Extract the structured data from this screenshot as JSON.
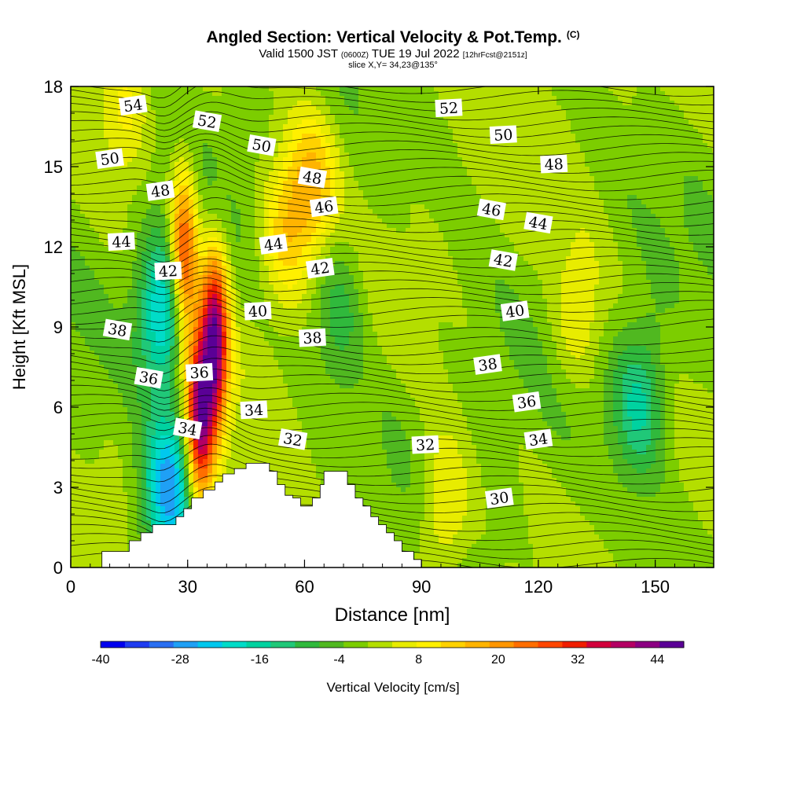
{
  "header": {
    "title": "Angled Section: Vertical Velocity & Pot.Temp.",
    "copyright": "(C)",
    "valid_prefix": "Valid 1500 JST",
    "utc": "(0600Z)",
    "valid_suffix": "TUE 19 Jul 2022",
    "fcst": "[12hrFcst@2151z]",
    "slice": "slice X,Y= 34,23@135°"
  },
  "chart_data": {
    "type": "heatmap",
    "xlabel": "Distance [nm]",
    "ylabel": "Height [Kft MSL]",
    "xlim": [
      0,
      165
    ],
    "ylim": [
      0,
      18
    ],
    "x_ticks": [
      0,
      30,
      60,
      90,
      120,
      150
    ],
    "y_ticks": [
      0,
      3,
      6,
      9,
      12,
      15,
      18
    ],
    "colorbar": {
      "label": "Vertical Velocity [cm/s]",
      "ticks": [
        -40,
        -28,
        -16,
        -4,
        8,
        20,
        32,
        44
      ],
      "range": [
        -40,
        48
      ],
      "step": 4,
      "colors": [
        "#0000ee",
        "#1f3cf0",
        "#2a6ff2",
        "#1fa0f5",
        "#00c8ee",
        "#00dcc8",
        "#00d2a0",
        "#20c878",
        "#30b93c",
        "#50b820",
        "#7ccd00",
        "#b4de00",
        "#e8ec00",
        "#fff000",
        "#ffd200",
        "#ffb400",
        "#ff9600",
        "#ff6e00",
        "#ff4600",
        "#f01e00",
        "#d2003c",
        "#b40064",
        "#8c0082",
        "#5a0096"
      ]
    },
    "velocity_features": [
      {
        "x": 37,
        "z": 8.5,
        "value": 46
      },
      {
        "x": 29,
        "z": 11.5,
        "value": 36
      },
      {
        "x": 33,
        "z": 5.5,
        "value": 44
      },
      {
        "x": 24,
        "z": 9.5,
        "value": -26
      },
      {
        "x": 25,
        "z": 2.8,
        "value": -30
      },
      {
        "x": 69,
        "z": 9.8,
        "value": -10
      },
      {
        "x": 146,
        "z": 6.2,
        "value": -16
      },
      {
        "x": 55,
        "z": 12.5,
        "value": 14
      },
      {
        "x": 62,
        "z": 14.5,
        "value": 16
      },
      {
        "x": 96,
        "z": 2.2,
        "value": 12
      },
      {
        "x": 130,
        "z": 9.5,
        "value": 10
      },
      {
        "x": 14,
        "z": 17,
        "value": 10
      }
    ],
    "contour_labels": [
      {
        "text": "54",
        "x": 16,
        "z": 17.3
      },
      {
        "text": "52",
        "x": 35,
        "z": 16.7
      },
      {
        "text": "52",
        "x": 97,
        "z": 17.2
      },
      {
        "text": "50",
        "x": 10,
        "z": 15.3
      },
      {
        "text": "50",
        "x": 49,
        "z": 15.8
      },
      {
        "text": "50",
        "x": 111,
        "z": 16.2
      },
      {
        "text": "48",
        "x": 23,
        "z": 14.1
      },
      {
        "text": "48",
        "x": 62,
        "z": 14.6
      },
      {
        "text": "48",
        "x": 124,
        "z": 15.1
      },
      {
        "text": "46",
        "x": 65,
        "z": 13.5
      },
      {
        "text": "46",
        "x": 108,
        "z": 13.4
      },
      {
        "text": "44",
        "x": 13,
        "z": 12.2
      },
      {
        "text": "44",
        "x": 52,
        "z": 12.1
      },
      {
        "text": "44",
        "x": 120,
        "z": 12.9
      },
      {
        "text": "42",
        "x": 25,
        "z": 11.1
      },
      {
        "text": "42",
        "x": 64,
        "z": 11.2
      },
      {
        "text": "42",
        "x": 111,
        "z": 11.5
      },
      {
        "text": "40",
        "x": 48,
        "z": 9.6
      },
      {
        "text": "40",
        "x": 114,
        "z": 9.6
      },
      {
        "text": "38",
        "x": 12,
        "z": 8.9
      },
      {
        "text": "38",
        "x": 62,
        "z": 8.6
      },
      {
        "text": "38",
        "x": 107,
        "z": 7.6
      },
      {
        "text": "36",
        "x": 20,
        "z": 7.1
      },
      {
        "text": "36",
        "x": 33,
        "z": 7.3
      },
      {
        "text": "36",
        "x": 117,
        "z": 6.2
      },
      {
        "text": "34",
        "x": 30,
        "z": 5.2
      },
      {
        "text": "34",
        "x": 47,
        "z": 5.9
      },
      {
        "text": "34",
        "x": 120,
        "z": 4.8
      },
      {
        "text": "32",
        "x": 57,
        "z": 4.8
      },
      {
        "text": "32",
        "x": 91,
        "z": 4.6
      },
      {
        "text": "30",
        "x": 110,
        "z": 2.6
      }
    ],
    "terrain": [
      {
        "x": 0,
        "z": 0
      },
      {
        "x": 8,
        "z": 0.6
      },
      {
        "x": 15,
        "z": 1.0
      },
      {
        "x": 18,
        "z": 1.3
      },
      {
        "x": 21,
        "z": 1.6
      },
      {
        "x": 24,
        "z": 1.6
      },
      {
        "x": 27,
        "z": 1.9
      },
      {
        "x": 29,
        "z": 2.2
      },
      {
        "x": 31,
        "z": 2.6
      },
      {
        "x": 34,
        "z": 2.9
      },
      {
        "x": 37,
        "z": 3.2
      },
      {
        "x": 39,
        "z": 3.5
      },
      {
        "x": 42,
        "z": 3.7
      },
      {
        "x": 45,
        "z": 3.9
      },
      {
        "x": 49,
        "z": 3.9
      },
      {
        "x": 51,
        "z": 3.6
      },
      {
        "x": 53,
        "z": 3.1
      },
      {
        "x": 55,
        "z": 2.7
      },
      {
        "x": 57,
        "z": 2.6
      },
      {
        "x": 59,
        "z": 2.3
      },
      {
        "x": 62,
        "z": 2.6
      },
      {
        "x": 64,
        "z": 3.1
      },
      {
        "x": 65,
        "z": 3.6
      },
      {
        "x": 69,
        "z": 3.6
      },
      {
        "x": 71,
        "z": 3.1
      },
      {
        "x": 73,
        "z": 2.6
      },
      {
        "x": 75,
        "z": 2.3
      },
      {
        "x": 77,
        "z": 1.9
      },
      {
        "x": 79,
        "z": 1.6
      },
      {
        "x": 81,
        "z": 1.3
      },
      {
        "x": 83,
        "z": 1.0
      },
      {
        "x": 85,
        "z": 0.6
      },
      {
        "x": 88,
        "z": 0.3
      },
      {
        "x": 90,
        "z": 0
      }
    ]
  }
}
